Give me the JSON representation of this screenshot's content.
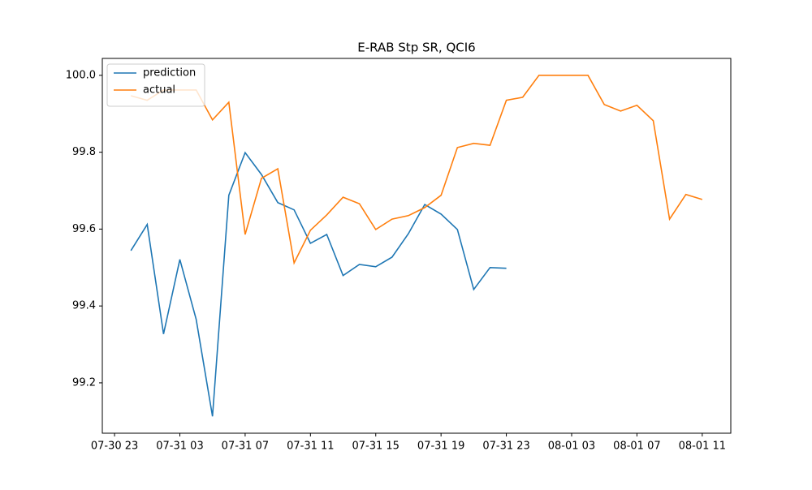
{
  "chart_data": {
    "type": "line",
    "title": "E-RAB Stp SR, QCI6",
    "x": [
      "07-31 00",
      "07-31 01",
      "07-31 02",
      "07-31 03",
      "07-31 04",
      "07-31 05",
      "07-31 06",
      "07-31 07",
      "07-31 08",
      "07-31 09",
      "07-31 10",
      "07-31 11",
      "07-31 12",
      "07-31 13",
      "07-31 14",
      "07-31 15",
      "07-31 16",
      "07-31 17",
      "07-31 18",
      "07-31 19",
      "07-31 20",
      "07-31 21",
      "07-31 22",
      "07-31 23",
      "08-01 00",
      "08-01 01",
      "08-01 02",
      "08-01 03",
      "08-01 04",
      "08-01 05",
      "08-01 06",
      "08-01 07",
      "08-01 08",
      "08-01 09",
      "08-01 10",
      "08-01 11"
    ],
    "series": [
      {
        "name": "prediction",
        "color": "#1f77b4",
        "values": [
          99.544,
          99.612,
          99.327,
          99.521,
          99.365,
          99.113,
          99.688,
          99.799,
          99.742,
          99.669,
          99.65,
          99.563,
          99.586,
          99.479,
          99.508,
          99.502,
          99.527,
          99.588,
          99.664,
          99.639,
          99.599,
          99.443,
          99.5,
          99.498,
          null,
          null,
          null,
          null,
          null,
          null,
          null,
          null,
          null,
          null,
          null,
          null
        ]
      },
      {
        "name": "actual",
        "color": "#ff7f0e",
        "values": [
          99.947,
          99.935,
          99.962,
          99.962,
          99.962,
          99.884,
          99.93,
          99.586,
          99.732,
          99.757,
          99.512,
          99.597,
          99.637,
          99.683,
          99.666,
          99.599,
          99.626,
          99.635,
          99.656,
          99.688,
          99.812,
          99.823,
          99.818,
          99.935,
          99.943,
          100.0,
          100.0,
          100.0,
          100.0,
          99.924,
          99.907,
          99.922,
          99.882,
          99.626,
          99.69,
          99.677
        ]
      }
    ],
    "xlim": [
      "07-30 22:15",
      "08-01 12:45"
    ],
    "xticks": [
      "07-30 23",
      "07-31 03",
      "07-31 07",
      "07-31 11",
      "07-31 15",
      "07-31 19",
      "07-31 23",
      "08-01 03",
      "08-01 07",
      "08-01 11"
    ],
    "ylim": [
      99.069,
      100.044
    ],
    "yticks": [
      99.2,
      99.4,
      99.6,
      99.8,
      {
        "value": 100,
        "label": "100.0"
      }
    ],
    "grid": false,
    "legend": "upper left"
  }
}
